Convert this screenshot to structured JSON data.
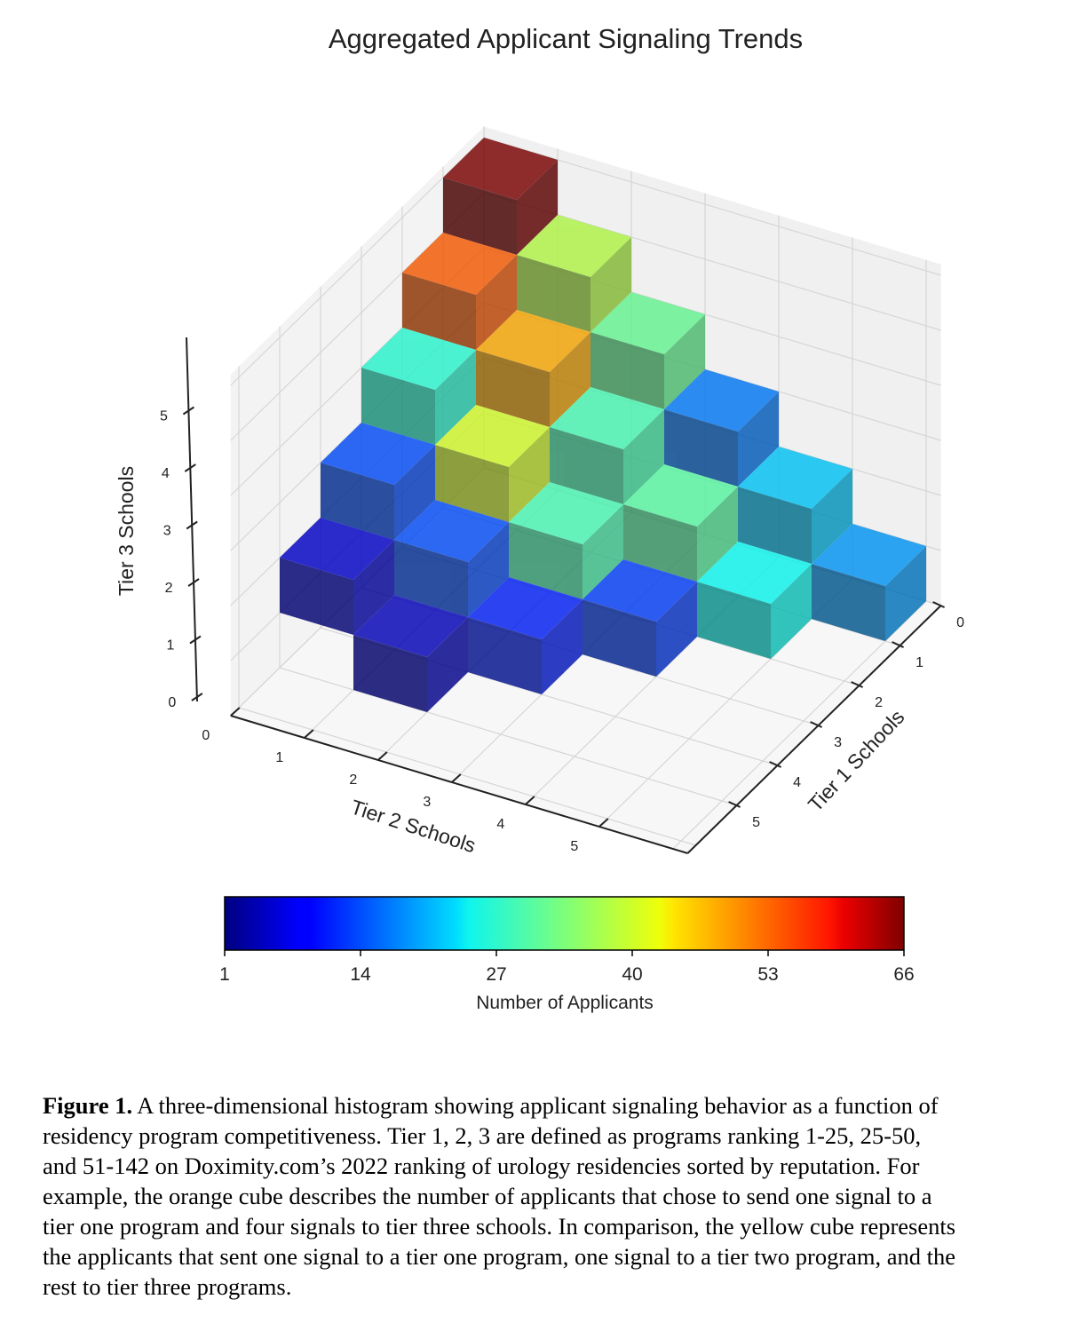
{
  "chart_data": {
    "type": "bar3d",
    "title": "Aggregated Applicant Signaling Trends",
    "xlabel": "Tier 2 Schools",
    "ylabel": "Tier 1 Schools",
    "zlabel": "Tier 3 Schools",
    "x_ticks": [
      "0",
      "1",
      "2",
      "3",
      "4",
      "5"
    ],
    "y_ticks": [
      "0",
      "1",
      "2",
      "3",
      "4",
      "5"
    ],
    "z_ticks": [
      "0",
      "1",
      "2",
      "3",
      "4",
      "5"
    ],
    "colorbar": {
      "label": "Number of Applicants",
      "colormap": "jet",
      "range": [
        1,
        66
      ],
      "ticks": [
        "1",
        "14",
        "27",
        "40",
        "53",
        "66"
      ]
    },
    "cubes": [
      {
        "tier1": 0,
        "tier2": 0,
        "tier3": 5,
        "applicants": 66
      },
      {
        "tier1": 1,
        "tier2": 0,
        "tier3": 4,
        "applicants": 52
      },
      {
        "tier1": 0,
        "tier2": 1,
        "tier3": 4,
        "applicants": 37
      },
      {
        "tier1": 2,
        "tier2": 0,
        "tier3": 3,
        "applicants": 28
      },
      {
        "tier1": 1,
        "tier2": 1,
        "tier3": 3,
        "applicants": 47
      },
      {
        "tier1": 0,
        "tier2": 2,
        "tier3": 3,
        "applicants": 32
      },
      {
        "tier1": 3,
        "tier2": 0,
        "tier3": 2,
        "applicants": 14
      },
      {
        "tier1": 2,
        "tier2": 1,
        "tier3": 2,
        "applicants": 39
      },
      {
        "tier1": 1,
        "tier2": 2,
        "tier3": 2,
        "applicants": 30
      },
      {
        "tier1": 0,
        "tier2": 3,
        "tier3": 2,
        "applicants": 17
      },
      {
        "tier1": 4,
        "tier2": 0,
        "tier3": 1,
        "applicants": 6
      },
      {
        "tier1": 3,
        "tier2": 1,
        "tier3": 1,
        "applicants": 14
      },
      {
        "tier1": 2,
        "tier2": 2,
        "tier3": 1,
        "applicants": 30
      },
      {
        "tier1": 1,
        "tier2": 3,
        "tier3": 1,
        "applicants": 31
      },
      {
        "tier1": 0,
        "tier2": 4,
        "tier3": 1,
        "applicants": 22
      },
      {
        "tier1": 4,
        "tier2": 1,
        "tier3": 0,
        "applicants": 5
      },
      {
        "tier1": 3,
        "tier2": 2,
        "tier3": 0,
        "applicants": 11
      },
      {
        "tier1": 2,
        "tier2": 3,
        "tier3": 0,
        "applicants": 13
      },
      {
        "tier1": 1,
        "tier2": 4,
        "tier3": 0,
        "applicants": 26
      },
      {
        "tier1": 0,
        "tier2": 5,
        "tier3": 0,
        "applicants": 19
      }
    ]
  },
  "caption": {
    "label": "Figure 1.",
    "lines": [
      " A three-dimensional histogram showing applicant signaling behavior as a function of",
      "residency program competitiveness. Tier 1, 2, 3 are defined as programs ranking 1-25, 25-50,",
      "and 51-142 on Doximity.com’s 2022 ranking of urology residencies sorted by reputation. For",
      "example, the orange cube describes the number of applicants that chose to send one signal to a",
      "tier one program and four signals to tier three schools. In comparison, the yellow cube represents",
      "the applicants that sent one signal to a tier one program, one signal to a tier two program, and the",
      "rest to tier three programs."
    ]
  }
}
